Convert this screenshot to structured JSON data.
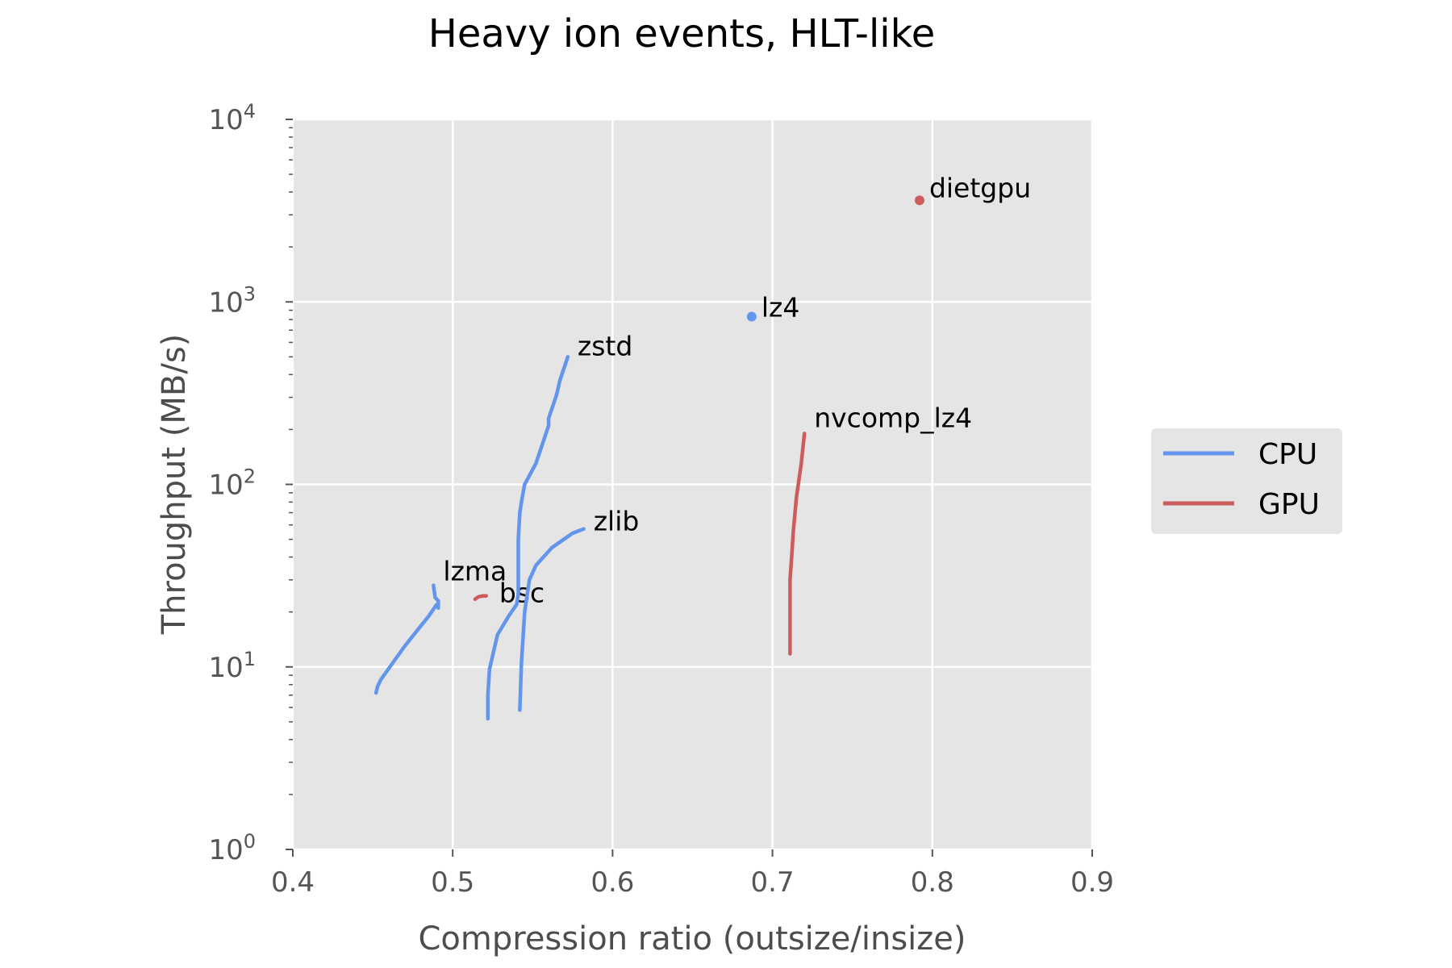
{
  "chart_data": {
    "type": "line",
    "title": "Heavy ion events, HLT-like",
    "xlabel": "Compression ratio (outsize/insize)",
    "ylabel": "Throughput (MB/s)",
    "xlim": [
      0.4,
      0.9
    ],
    "ylim": [
      1,
      10000
    ],
    "yscale": "log",
    "xticks": [
      "0.4",
      "0.5",
      "0.6",
      "0.7",
      "0.8",
      "0.9"
    ],
    "yticks": [
      {
        "value": 1,
        "base": "10",
        "exp": "0"
      },
      {
        "value": 10,
        "base": "10",
        "exp": "1"
      },
      {
        "value": 100,
        "base": "10",
        "exp": "2"
      },
      {
        "value": 1000,
        "base": "10",
        "exp": "3"
      },
      {
        "value": 10000,
        "base": "10",
        "exp": "4"
      }
    ],
    "grid": true,
    "legend_position": "right",
    "legend": [
      {
        "label": "CPU",
        "color": "#6495ed"
      },
      {
        "label": "GPU",
        "color": "#cd5c5c"
      }
    ],
    "series": [
      {
        "name": "lzma",
        "group": "CPU",
        "kind": "line",
        "label": "lzma",
        "points": [
          [
            0.452,
            7.2
          ],
          [
            0.453,
            7.8
          ],
          [
            0.455,
            8.5
          ],
          [
            0.47,
            13
          ],
          [
            0.485,
            19
          ],
          [
            0.49,
            22
          ],
          [
            0.491,
            21
          ],
          [
            0.491,
            23
          ],
          [
            0.489,
            24
          ],
          [
            0.488,
            28
          ]
        ]
      },
      {
        "name": "bsc",
        "group": "GPU",
        "kind": "line",
        "label": "bsc",
        "points": [
          [
            0.514,
            23.5
          ],
          [
            0.516,
            24.2
          ],
          [
            0.519,
            24.5
          ],
          [
            0.521,
            24.5
          ]
        ]
      },
      {
        "name": "zstd",
        "group": "CPU",
        "kind": "line",
        "label": "zstd",
        "points": [
          [
            0.522,
            5.2
          ],
          [
            0.522,
            7
          ],
          [
            0.523,
            9.7
          ],
          [
            0.528,
            15
          ],
          [
            0.535,
            19
          ],
          [
            0.54,
            22
          ],
          [
            0.541,
            25
          ],
          [
            0.541,
            50
          ],
          [
            0.542,
            70
          ],
          [
            0.543,
            80
          ],
          [
            0.545,
            100
          ],
          [
            0.552,
            130
          ],
          [
            0.56,
            210
          ],
          [
            0.56,
            230
          ],
          [
            0.565,
            310
          ],
          [
            0.567,
            370
          ],
          [
            0.572,
            500
          ]
        ]
      },
      {
        "name": "zlib",
        "group": "CPU",
        "kind": "line",
        "label": "zlib",
        "points": [
          [
            0.542,
            5.8
          ],
          [
            0.543,
            10.5
          ],
          [
            0.545,
            20
          ],
          [
            0.548,
            30
          ],
          [
            0.552,
            36
          ],
          [
            0.562,
            45
          ],
          [
            0.575,
            54
          ],
          [
            0.582,
            57
          ]
        ]
      },
      {
        "name": "lz4",
        "group": "CPU",
        "kind": "point",
        "label": "lz4",
        "points": [
          [
            0.687,
            830
          ]
        ]
      },
      {
        "name": "nvcomp_lz4",
        "group": "GPU",
        "kind": "line",
        "label": "nvcomp_lz4",
        "points": [
          [
            0.711,
            11.8
          ],
          [
            0.711,
            20
          ],
          [
            0.711,
            30
          ],
          [
            0.712,
            40
          ],
          [
            0.713,
            55
          ],
          [
            0.715,
            85
          ],
          [
            0.718,
            130
          ],
          [
            0.72,
            190
          ]
        ]
      },
      {
        "name": "dietgpu",
        "group": "GPU",
        "kind": "point",
        "label": "dietgpu",
        "points": [
          [
            0.792,
            3600
          ]
        ]
      }
    ]
  }
}
